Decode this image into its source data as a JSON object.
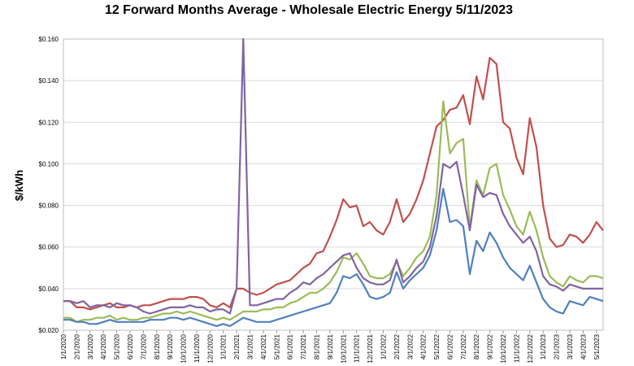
{
  "chart_data": {
    "type": "line",
    "title": "12 Forward Months Average - Wholesale Electric Energy 5/11/2023",
    "y_label": "$/kWh",
    "categories": [
      "1/1/2020",
      null,
      "2/1/2020",
      null,
      "3/1/2020",
      null,
      "4/1/2020",
      null,
      "5/1/2020",
      null,
      "6/1/2020",
      null,
      "7/1/2020",
      null,
      "8/1/2020",
      null,
      "9/1/2020",
      null,
      "10/1/2020",
      null,
      "11/1/2020",
      null,
      "12/1/2020",
      null,
      "1/1/2021",
      null,
      "2/1/2021",
      null,
      "3/1/2021",
      null,
      "4/1/2021",
      null,
      "5/1/2021",
      null,
      "6/1/2021",
      null,
      "7/1/2021",
      null,
      "8/1/2021",
      null,
      "9/1/2021",
      null,
      "10/1/2021",
      null,
      "11/1/2021",
      null,
      "12/1/2021",
      null,
      "1/1/2022",
      null,
      "2/1/2022",
      null,
      "3/1/2022",
      null,
      "4/1/2022",
      null,
      "5/1/2022",
      null,
      "6/1/2022",
      null,
      "7/1/2022",
      null,
      "8/1/2022",
      null,
      "9/1/2022",
      null,
      "10/1/2022",
      null,
      "11/1/2022",
      null,
      "12/1/2022",
      null,
      "1/1/2023",
      null,
      "2/1/2023",
      null,
      "3/1/2023",
      null,
      "4/1/2023",
      null,
      "5/1/2023",
      null
    ],
    "series": [
      {
        "color": "#c0504d",
        "values": [
          0.034,
          0.034,
          0.031,
          0.031,
          0.03,
          0.031,
          0.032,
          0.033,
          0.031,
          0.031,
          0.032,
          0.031,
          0.032,
          0.032,
          0.033,
          0.034,
          0.035,
          0.035,
          0.035,
          0.036,
          0.036,
          0.035,
          0.032,
          0.031,
          0.033,
          0.031,
          0.04,
          0.04,
          0.038,
          0.037,
          0.038,
          0.04,
          0.042,
          0.043,
          0.044,
          0.047,
          0.05,
          0.052,
          0.057,
          0.058,
          0.065,
          0.073,
          0.083,
          0.079,
          0.08,
          0.07,
          0.072,
          0.068,
          0.066,
          0.072,
          0.083,
          0.072,
          0.076,
          0.083,
          0.092,
          0.105,
          0.118,
          0.121,
          0.126,
          0.127,
          0.133,
          0.119,
          0.142,
          0.131,
          0.151,
          0.148,
          0.12,
          0.117,
          0.103,
          0.095,
          0.122,
          0.108,
          0.08,
          0.064,
          0.06,
          0.061,
          0.066,
          0.065,
          0.062,
          0.066,
          0.072,
          0.068
        ]
      },
      {
        "color": "#9bbb59",
        "values": [
          0.026,
          0.026,
          0.024,
          0.025,
          0.025,
          0.026,
          0.026,
          0.027,
          0.025,
          0.026,
          0.025,
          0.025,
          0.026,
          0.026,
          0.027,
          0.028,
          0.028,
          0.029,
          0.028,
          0.029,
          0.028,
          0.027,
          0.026,
          0.025,
          0.026,
          0.025,
          0.027,
          0.029,
          0.029,
          0.029,
          0.03,
          0.03,
          0.031,
          0.031,
          0.033,
          0.034,
          0.036,
          0.038,
          0.038,
          0.04,
          0.043,
          0.048,
          0.055,
          0.054,
          0.057,
          0.052,
          0.046,
          0.045,
          0.045,
          0.047,
          0.053,
          0.046,
          0.05,
          0.055,
          0.058,
          0.065,
          0.085,
          0.13,
          0.105,
          0.11,
          0.112,
          0.069,
          0.092,
          0.085,
          0.098,
          0.1,
          0.085,
          0.078,
          0.07,
          0.066,
          0.077,
          0.068,
          0.055,
          0.046,
          0.043,
          0.041,
          0.046,
          0.044,
          0.043,
          0.046,
          0.046,
          0.045
        ]
      },
      {
        "color": "#8064a2",
        "values": [
          0.034,
          0.034,
          0.033,
          0.034,
          0.031,
          0.032,
          0.032,
          0.031,
          0.033,
          0.032,
          0.032,
          0.031,
          0.029,
          0.028,
          0.029,
          0.03,
          0.031,
          0.031,
          0.031,
          0.032,
          0.031,
          0.031,
          0.029,
          0.03,
          0.03,
          0.028,
          0.04,
          0.16,
          0.032,
          0.032,
          0.033,
          0.034,
          0.035,
          0.035,
          0.038,
          0.04,
          0.043,
          0.042,
          0.045,
          0.047,
          0.05,
          0.053,
          0.056,
          0.057,
          0.05,
          0.045,
          0.043,
          0.042,
          0.042,
          0.044,
          0.054,
          0.043,
          0.046,
          0.05,
          0.053,
          0.06,
          0.075,
          0.1,
          0.098,
          0.101,
          0.085,
          0.068,
          0.09,
          0.084,
          0.086,
          0.085,
          0.076,
          0.07,
          0.066,
          0.062,
          0.065,
          0.058,
          0.046,
          0.042,
          0.041,
          0.039,
          0.042,
          0.041,
          0.04,
          0.04,
          0.04,
          0.04
        ]
      },
      {
        "color": "#4f81bd",
        "values": [
          0.025,
          0.025,
          0.024,
          0.024,
          0.023,
          0.023,
          0.024,
          0.025,
          0.024,
          0.024,
          0.024,
          0.024,
          0.024,
          0.025,
          0.025,
          0.025,
          0.026,
          0.026,
          0.025,
          0.026,
          0.025,
          0.024,
          0.023,
          0.022,
          0.023,
          0.022,
          0.024,
          0.026,
          0.025,
          0.024,
          0.024,
          0.024,
          0.025,
          0.026,
          0.027,
          0.028,
          0.029,
          0.03,
          0.031,
          0.032,
          0.033,
          0.038,
          0.046,
          0.045,
          0.047,
          0.042,
          0.036,
          0.035,
          0.036,
          0.038,
          0.048,
          0.04,
          0.044,
          0.047,
          0.05,
          0.056,
          0.068,
          0.088,
          0.072,
          0.073,
          0.07,
          0.047,
          0.063,
          0.058,
          0.067,
          0.062,
          0.055,
          0.05,
          0.047,
          0.044,
          0.051,
          0.043,
          0.035,
          0.031,
          0.029,
          0.028,
          0.034,
          0.033,
          0.032,
          0.036,
          0.035,
          0.034
        ]
      }
    ],
    "ylim": [
      0.02,
      0.16
    ],
    "yticks": [
      {
        "value": 0.02,
        "label": "$0.020"
      },
      {
        "value": 0.04,
        "label": "$0.040"
      },
      {
        "value": 0.06,
        "label": "$0.060"
      },
      {
        "value": 0.08,
        "label": "$0.080"
      },
      {
        "value": 0.1,
        "label": "$0.100"
      },
      {
        "value": 0.12,
        "label": "$0.120"
      },
      {
        "value": 0.14,
        "label": "$0.140"
      },
      {
        "value": 0.16,
        "label": "$0.160"
      }
    ],
    "grid": true
  }
}
